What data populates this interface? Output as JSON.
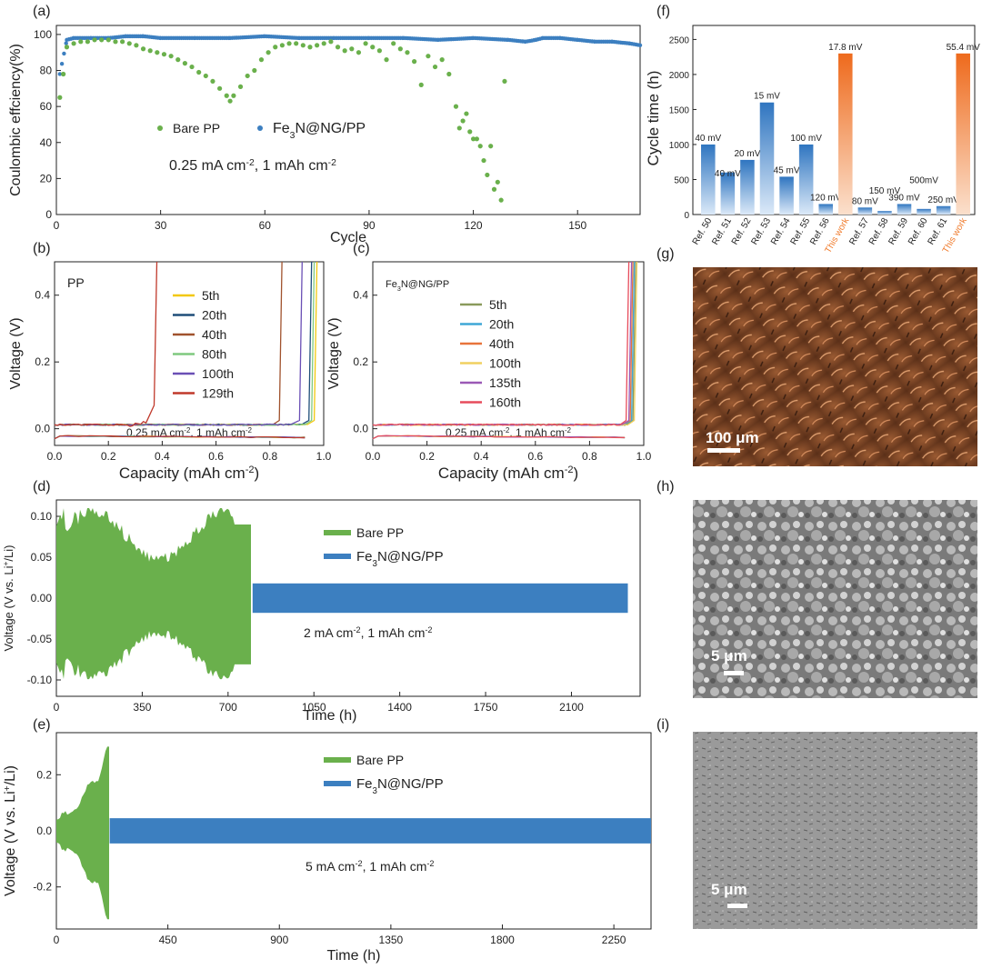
{
  "chart_data": [
    {
      "panel": "(a)",
      "type": "scatter",
      "xlabel": "Cycle",
      "ylabel": "Coulombic effciency(%)",
      "xlim": [
        0,
        168
      ],
      "ylim": [
        0,
        105
      ],
      "xticks": [
        0,
        30,
        60,
        90,
        120,
        150
      ],
      "yticks": [
        0,
        20,
        40,
        60,
        80,
        100
      ],
      "annotation": "0.25 mA cm-2, 1 mAh cm-2",
      "colors": {
        "bare": "#6ab04c",
        "fe3n": "#3c7fc0"
      },
      "series": [
        {
          "name": "Bare PP",
          "legend_main": "Bare PP",
          "legend_sub": "",
          "x": [
            1,
            2,
            3,
            5,
            7,
            9,
            11,
            13,
            15,
            17,
            19,
            21,
            23,
            25,
            27,
            29,
            31,
            33,
            35,
            37,
            39,
            41,
            43,
            45,
            47,
            49,
            50,
            51,
            53,
            55,
            57,
            59,
            61,
            63,
            65,
            67,
            69,
            71,
            73,
            75,
            77,
            79,
            81,
            83,
            85,
            87,
            89,
            91,
            93,
            95,
            97,
            99,
            101,
            103,
            105,
            107,
            109,
            111,
            113,
            115,
            116,
            117,
            118,
            119,
            120,
            121,
            122,
            123,
            124,
            125,
            126,
            127,
            128,
            129
          ],
          "y": [
            65,
            78,
            93,
            95,
            96,
            96,
            97,
            97,
            97,
            96,
            96,
            95,
            94,
            92,
            91,
            90,
            89,
            88,
            86,
            84,
            82,
            79,
            77,
            74,
            70,
            66,
            63,
            66,
            71,
            77,
            80,
            86,
            90,
            93,
            94,
            95,
            95,
            94,
            93,
            94,
            95,
            96,
            93,
            91,
            92,
            90,
            95,
            93,
            91,
            86,
            95,
            92,
            90,
            85,
            72,
            88,
            82,
            86,
            78,
            60,
            48,
            52,
            56,
            46,
            42,
            42,
            38,
            30,
            22,
            38,
            14,
            18,
            8,
            74
          ]
        },
        {
          "name": "Fe3N@NG/PP",
          "legend_main": "Fe",
          "legend_sub": "3",
          "legend_tail": "N@NG/PP",
          "x": [
            1,
            3,
            5,
            10,
            15,
            20,
            25,
            30,
            40,
            50,
            60,
            70,
            80,
            90,
            100,
            110,
            120,
            130,
            135,
            138,
            140,
            145,
            150,
            155,
            160,
            165,
            168
          ],
          "y": [
            78,
            97,
            98,
            98,
            98,
            99,
            99,
            98,
            98,
            98,
            99,
            98,
            98,
            98,
            98,
            97,
            98,
            97,
            96,
            97,
            98,
            98,
            97,
            96,
            96,
            95,
            94
          ]
        }
      ]
    },
    {
      "panel": "(b)",
      "type": "line",
      "inset_label": "PP",
      "xlabel": "Capacity (mAh cm-2)",
      "ylabel": "Voltage (V)",
      "xlim": [
        0,
        1.0
      ],
      "ylim": [
        -0.05,
        0.5
      ],
      "xticks": [
        0.0,
        0.2,
        0.4,
        0.6,
        0.8,
        1.0
      ],
      "yticks": [
        0.0,
        0.2,
        0.4
      ],
      "annotation": "0.25 mA cm-2, 1 mAh cm-2",
      "series": [
        {
          "name": "5th",
          "color": "#f2c80f",
          "end": 0.975
        },
        {
          "name": "20th",
          "color": "#1f4e79",
          "end": 0.955
        },
        {
          "name": "40th",
          "color": "#a0522d",
          "end": 0.845
        },
        {
          "name": "80th",
          "color": "#7fc97f",
          "end": 0.965
        },
        {
          "name": "100th",
          "color": "#6a4fb5",
          "end": 0.92
        },
        {
          "name": "129th",
          "color": "#c0392b",
          "end": 0.38
        }
      ]
    },
    {
      "panel": "(c)",
      "type": "line",
      "inset_label": "Fe3N@NG/PP",
      "xlabel": "Capacity (mAh cm-2)",
      "ylabel": "Voltage (V)",
      "xlim": [
        0,
        1.0
      ],
      "ylim": [
        -0.05,
        0.5
      ],
      "xticks": [
        0.0,
        0.2,
        0.4,
        0.6,
        0.8,
        1.0
      ],
      "yticks": [
        0.0,
        0.2,
        0.4
      ],
      "annotation": "0.25 mA cm-2, 1 mAh cm-2",
      "series": [
        {
          "name": "5th",
          "color": "#8a9a5b",
          "end": 0.97
        },
        {
          "name": "20th",
          "color": "#3fa7d6",
          "end": 0.965
        },
        {
          "name": "40th",
          "color": "#e8743b",
          "end": 0.96
        },
        {
          "name": "100th",
          "color": "#f0d060",
          "end": 0.975
        },
        {
          "name": "135th",
          "color": "#9b59b6",
          "end": 0.955
        },
        {
          "name": "160th",
          "color": "#e74c5c",
          "end": 0.945
        }
      ]
    },
    {
      "panel": "(d)",
      "type": "area",
      "xlabel": "Time (h)",
      "ylabel": "Voltage (V vs. Li+/Li)",
      "xlim": [
        0,
        2380
      ],
      "ylim": [
        -0.12,
        0.12
      ],
      "xticks": [
        0,
        350,
        700,
        1050,
        1400,
        1750,
        2100
      ],
      "yticks": [
        -0.1,
        -0.05,
        0.0,
        0.05,
        0.1
      ],
      "annotation": "2 mA cm-2, 1 mAh cm-2",
      "series": [
        {
          "name": "Bare PP",
          "color": "#6ab04c",
          "x_end": 800,
          "amplitude_max": 0.11
        },
        {
          "name": "Fe3N@NG/PP",
          "color": "#3c7fc0",
          "x_start": 800,
          "x_end": 2330,
          "amplitude": 0.018
        }
      ]
    },
    {
      "panel": "(e)",
      "type": "area",
      "xlabel": "Time (h)",
      "ylabel": "Voltage (V vs. Li+/Li)",
      "xlim": [
        0,
        2400
      ],
      "ylim": [
        -0.35,
        0.35
      ],
      "xticks": [
        0,
        450,
        900,
        1350,
        1800,
        2250
      ],
      "yticks": [
        -0.2,
        0.0,
        0.2
      ],
      "annotation": "5 mA cm-2, 1 mAh cm-2",
      "series": [
        {
          "name": "Bare PP",
          "color": "#6ab04c",
          "x_end": 215,
          "amplitude_max": 0.3
        },
        {
          "name": "Fe3N@NG/PP",
          "color": "#3c7fc0",
          "x_start": 215,
          "x_end": 2400,
          "amplitude": 0.045
        }
      ]
    },
    {
      "panel": "(f)",
      "type": "bar",
      "ylabel": "Cycle time (h)",
      "ylim": [
        0,
        2700
      ],
      "yticks": [
        0,
        500,
        1000,
        1500,
        2000,
        2500
      ],
      "categories": [
        "Ref. 50",
        "Ref. 51",
        "Ref. 52",
        "Ref. 53",
        "Ref. 54",
        "Ref. 55",
        "Ref. 56",
        "This work",
        "Ref. 57",
        "Ref. 58",
        "Ref. 59",
        "Ref. 60",
        "Ref. 61",
        "This work"
      ],
      "values": [
        1000,
        600,
        780,
        1600,
        540,
        1000,
        150,
        2300,
        100,
        50,
        150,
        80,
        120,
        2300
      ],
      "bar_labels": [
        "40 mV",
        "40 mV",
        "20 mV",
        "15 mV",
        "45 mV",
        "100 mV",
        "120 mV",
        "17.8 mV",
        "80 mV",
        "150 mV",
        "390 mV",
        "500mV",
        "250 mV",
        "55.4 mV"
      ],
      "highlight": [
        7,
        13
      ],
      "colors": {
        "ref": "#4a8ed0",
        "work": "#f07b2c"
      }
    },
    {
      "panel": "(g)",
      "type": "image",
      "scale_label": "100 μm"
    },
    {
      "panel": "(h)",
      "type": "image",
      "scale_label": "5 μm"
    },
    {
      "panel": "(i)",
      "type": "image",
      "scale_label": "5 μm"
    }
  ]
}
